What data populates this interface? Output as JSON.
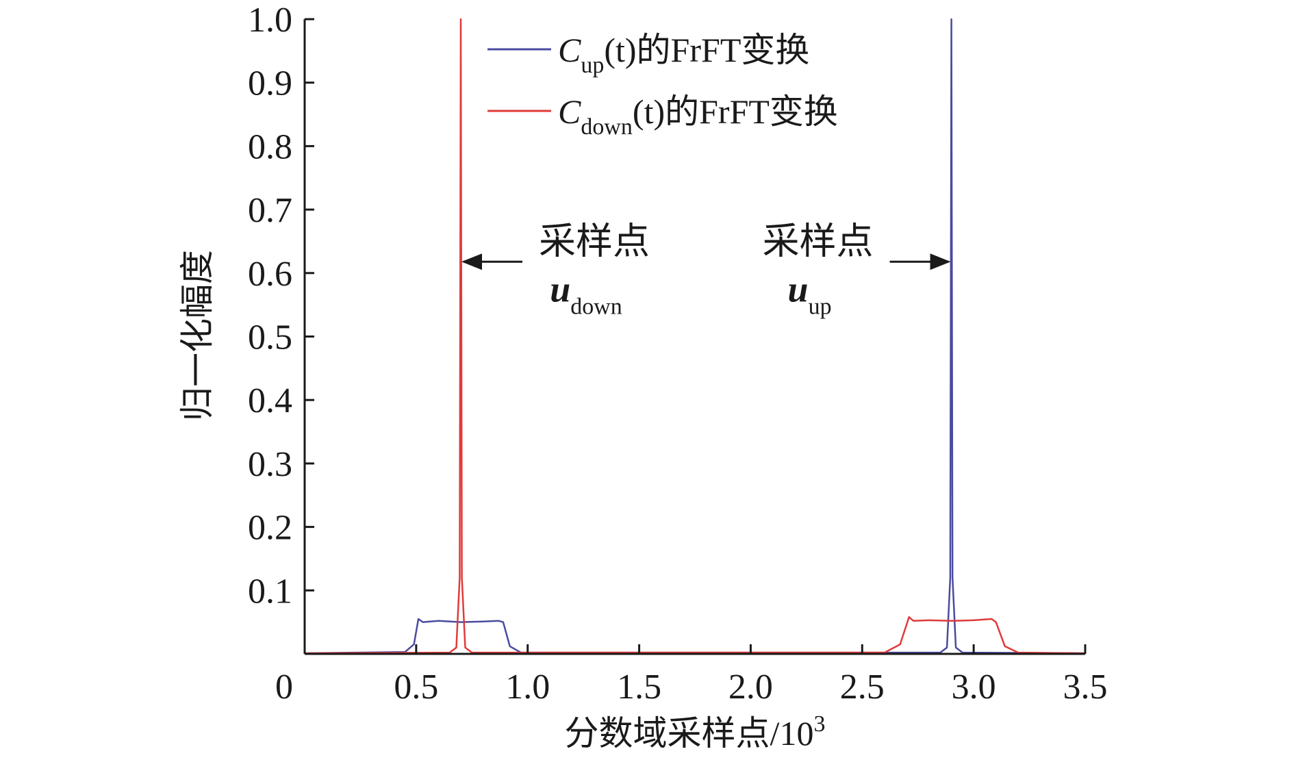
{
  "chart_data": {
    "type": "line",
    "title": "",
    "xlabel": "分数域采样点/10",
    "xlabel_sup": "3",
    "ylabel": "归一化幅度",
    "xlim": [
      0,
      3.5
    ],
    "ylim": [
      0,
      1.0
    ],
    "xticks": [
      0.5,
      1.0,
      1.5,
      2.0,
      2.5,
      3.0,
      3.5
    ],
    "xtick_labels": [
      "0.5",
      "1.0",
      "1.5",
      "2.0",
      "2.5",
      "3.0",
      "3.5"
    ],
    "origin_label": "0",
    "yticks": [
      0.1,
      0.2,
      0.3,
      0.4,
      0.5,
      0.6,
      0.7,
      0.8,
      0.9,
      1.0
    ],
    "ytick_labels": [
      "0.1",
      "0.2",
      "0.3",
      "0.4",
      "0.5",
      "0.6",
      "0.7",
      "0.8",
      "0.9",
      "1.0"
    ],
    "grid": false,
    "legend_position": "top-right",
    "series": [
      {
        "name_main": "C",
        "name_sub": "up",
        "name_rest": "(t)的FrFT变换",
        "color": "#4a4aa0",
        "points": [
          [
            0,
            0.001
          ],
          [
            0.45,
            0.003
          ],
          [
            0.49,
            0.015
          ],
          [
            0.51,
            0.055
          ],
          [
            0.53,
            0.05
          ],
          [
            0.6,
            0.052
          ],
          [
            0.7,
            0.05
          ],
          [
            0.8,
            0.051
          ],
          [
            0.87,
            0.052
          ],
          [
            0.89,
            0.05
          ],
          [
            0.92,
            0.012
          ],
          [
            0.97,
            0.002
          ],
          [
            2.85,
            0.002
          ],
          [
            2.88,
            0.01
          ],
          [
            2.895,
            0.12
          ],
          [
            2.9,
            1.0
          ],
          [
            2.905,
            0.12
          ],
          [
            2.92,
            0.01
          ],
          [
            2.95,
            0.002
          ],
          [
            3.5,
            0.001
          ]
        ]
      },
      {
        "name_main": "C",
        "name_sub": "down",
        "name_rest": "(t)的FrFT变换",
        "color": "#e03a3a",
        "points": [
          [
            0,
            0.001
          ],
          [
            0.65,
            0.002
          ],
          [
            0.68,
            0.01
          ],
          [
            0.695,
            0.12
          ],
          [
            0.7,
            1.0
          ],
          [
            0.705,
            0.12
          ],
          [
            0.72,
            0.01
          ],
          [
            0.75,
            0.002
          ],
          [
            2.6,
            0.002
          ],
          [
            2.67,
            0.015
          ],
          [
            2.71,
            0.058
          ],
          [
            2.73,
            0.052
          ],
          [
            2.8,
            0.053
          ],
          [
            2.9,
            0.052
          ],
          [
            3.0,
            0.053
          ],
          [
            3.08,
            0.055
          ],
          [
            3.1,
            0.05
          ],
          [
            3.14,
            0.012
          ],
          [
            3.2,
            0.002
          ],
          [
            3.5,
            0.001
          ]
        ]
      }
    ],
    "annotations": [
      {
        "text": "采样点",
        "var": "u",
        "sub": "down",
        "x": 0.7,
        "y": 0.62,
        "arrow": "left"
      },
      {
        "text": "采样点",
        "var": "u",
        "sub": "up",
        "x": 2.9,
        "y": 0.62,
        "arrow": "right"
      }
    ]
  }
}
